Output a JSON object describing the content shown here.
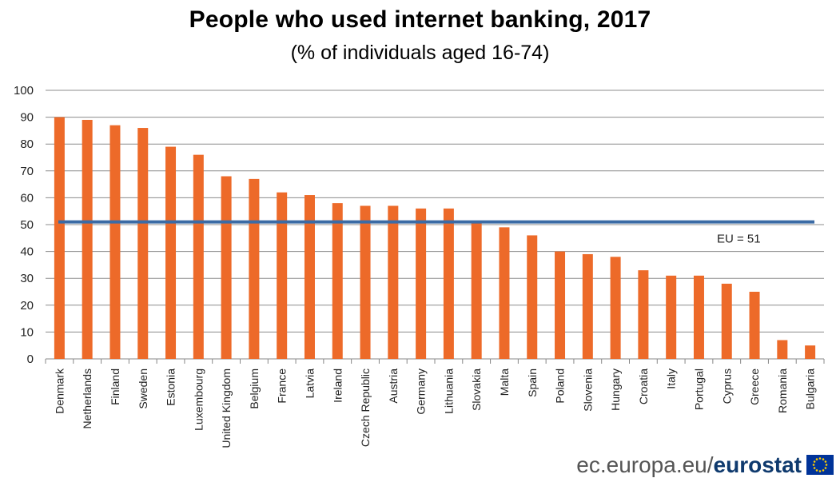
{
  "chart_data": {
    "type": "bar",
    "title": "People who used internet banking, 2017",
    "subtitle": "(% of individuals aged 16-74)",
    "xlabel": "",
    "ylabel": "",
    "ylim": [
      0,
      100
    ],
    "yticks": [
      0,
      10,
      20,
      30,
      40,
      50,
      60,
      70,
      80,
      90,
      100
    ],
    "grid": true,
    "categories": [
      "Denmark",
      "Netherlands",
      "Finland",
      "Sweden",
      "Estonia",
      "Luxembourg",
      "United Kingdom",
      "Belgium",
      "France",
      "Latvia",
      "Ireland",
      "Czech Republic",
      "Austria",
      "Germany",
      "Lithuania",
      "Slovakia",
      "Malta",
      "Spain",
      "Poland",
      "Slovenia",
      "Hungary",
      "Croatia",
      "Italy",
      "Portugal",
      "Cyprus",
      "Greece",
      "Romania",
      "Bulgaria"
    ],
    "values": [
      90,
      89,
      87,
      86,
      79,
      76,
      68,
      67,
      62,
      61,
      58,
      57,
      57,
      56,
      56,
      51,
      49,
      46,
      40,
      39,
      38,
      33,
      31,
      31,
      28,
      25,
      7,
      5
    ],
    "bar_color": "#ED6A29",
    "reference_line": {
      "value": 51,
      "label": "EU = 51",
      "color": "#3B6BA5"
    }
  },
  "footer": {
    "site": "ec.europa.eu/",
    "brand": "eurostat",
    "logo_icon": "eu-flag-icon"
  }
}
